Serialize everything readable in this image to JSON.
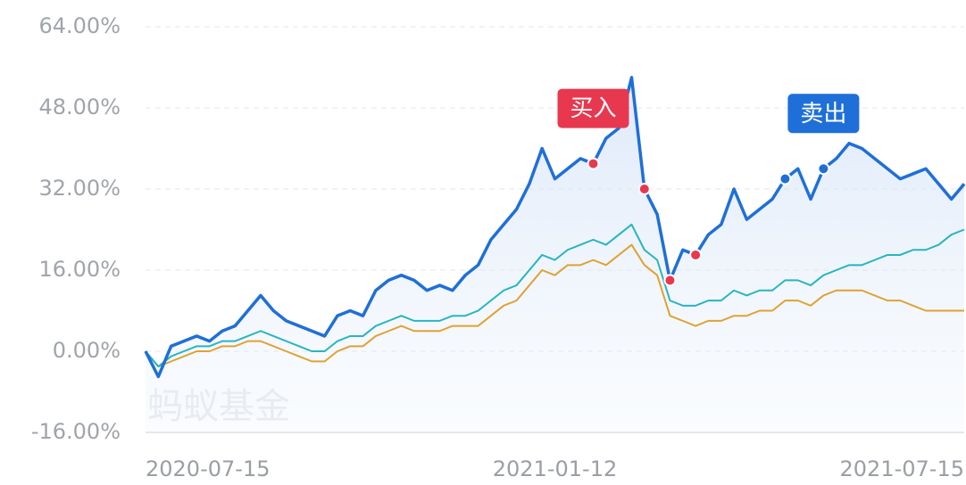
{
  "chart_data": {
    "type": "line",
    "categories": [
      "2020-07-15",
      null,
      null,
      null,
      null,
      null,
      null,
      null,
      null,
      null,
      null,
      null,
      null,
      null,
      null,
      null,
      null,
      null,
      null,
      null,
      null,
      null,
      null,
      null,
      null,
      null,
      null,
      null,
      null,
      null,
      null,
      null,
      "2021-01-12",
      null,
      null,
      null,
      null,
      null,
      null,
      null,
      null,
      null,
      null,
      null,
      null,
      null,
      null,
      null,
      null,
      null,
      null,
      null,
      null,
      null,
      null,
      null,
      null,
      null,
      null,
      null,
      null,
      null,
      null,
      null,
      "2021-07-15"
    ],
    "series": [
      {
        "color": "#1f6fd8",
        "values": [
          0,
          -5,
          1,
          2,
          3,
          2,
          4,
          5,
          8,
          11,
          8,
          6,
          5,
          4,
          3,
          7,
          8,
          7,
          12,
          14,
          15,
          14,
          12,
          13,
          12,
          15,
          17,
          22,
          25,
          28,
          33,
          40,
          34,
          36,
          38,
          37,
          42,
          44,
          54,
          32,
          27,
          14,
          20,
          19,
          23,
          25,
          32,
          26,
          28,
          30,
          34,
          36,
          30,
          36,
          38,
          41,
          40,
          38,
          36,
          34,
          35,
          36,
          33,
          30,
          33
        ]
      },
      {
        "color": "#26b5c1",
        "values": [
          0,
          -3,
          -1,
          0,
          1,
          1,
          2,
          2,
          3,
          4,
          3,
          2,
          1,
          0,
          0,
          2,
          3,
          3,
          5,
          6,
          7,
          6,
          6,
          6,
          7,
          7,
          8,
          10,
          12,
          13,
          16,
          19,
          18,
          20,
          21,
          22,
          21,
          23,
          25,
          20,
          18,
          10,
          9,
          9,
          10,
          10,
          12,
          11,
          12,
          12,
          14,
          14,
          13,
          15,
          16,
          17,
          17,
          18,
          19,
          19,
          20,
          20,
          21,
          23,
          24
        ]
      },
      {
        "color": "#e0a232",
        "values": [
          0,
          -3,
          -2,
          -1,
          0,
          0,
          1,
          1,
          2,
          2,
          1,
          0,
          -1,
          -2,
          -2,
          0,
          1,
          1,
          3,
          4,
          5,
          4,
          4,
          4,
          5,
          5,
          5,
          7,
          9,
          10,
          13,
          16,
          15,
          17,
          17,
          18,
          17,
          19,
          21,
          17,
          15,
          7,
          6,
          5,
          6,
          6,
          7,
          7,
          8,
          8,
          10,
          10,
          9,
          11,
          12,
          12,
          12,
          11,
          10,
          10,
          9,
          8,
          8,
          8,
          8
        ]
      }
    ],
    "markers": [
      {
        "index": 35,
        "color": "#e8384f"
      },
      {
        "index": 39,
        "color": "#e8384f"
      },
      {
        "index": 41,
        "color": "#e8384f"
      },
      {
        "index": 43,
        "color": "#e8384f"
      },
      {
        "index": 50,
        "color": "#1f6fd8"
      },
      {
        "index": 53,
        "color": "#1f6fd8"
      }
    ],
    "annotations": [
      {
        "text": "买入",
        "color": "#e8384f",
        "index": 35
      },
      {
        "text": "卖出",
        "color": "#1f6fd8",
        "index": 53
      }
    ],
    "watermark": "蚂蚁基金",
    "ylim": [
      -16,
      64
    ],
    "yticks": [
      {
        "value": -16,
        "label": "-16.00%"
      },
      {
        "value": 0,
        "label": "0.00%"
      },
      {
        "value": 16,
        "label": "16.00%"
      },
      {
        "value": 32,
        "label": "32.00%"
      },
      {
        "value": 48,
        "label": "48.00%"
      },
      {
        "value": 64,
        "label": "64.00%"
      }
    ],
    "grid": true
  }
}
